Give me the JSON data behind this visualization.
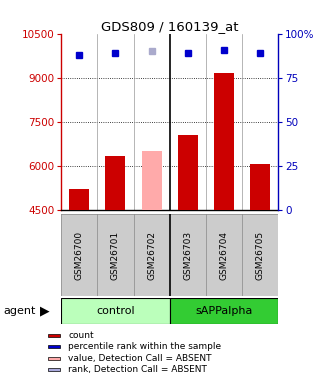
{
  "title": "GDS809 / 160139_at",
  "samples": [
    "GSM26700",
    "GSM26701",
    "GSM26702",
    "GSM26703",
    "GSM26704",
    "GSM26705"
  ],
  "group_labels": [
    "control",
    "sAPPalpha"
  ],
  "bar_values": [
    5200,
    6350,
    6500,
    7050,
    9150,
    6050
  ],
  "bar_colors": [
    "#cc0000",
    "#cc0000",
    "#ffaaaa",
    "#cc0000",
    "#cc0000",
    "#cc0000"
  ],
  "dot_pct": [
    88,
    89,
    90,
    89,
    91,
    89
  ],
  "dot_colors": [
    "#0000cc",
    "#0000cc",
    "#aaaacc",
    "#0000cc",
    "#0000cc",
    "#0000cc"
  ],
  "ylim_left": [
    4500,
    10500
  ],
  "ylim_right": [
    0,
    100
  ],
  "yticks_left": [
    4500,
    6000,
    7500,
    9000,
    10500
  ],
  "yticks_right": [
    0,
    25,
    50,
    75,
    100
  ],
  "ytick_right_labels": [
    "0",
    "25",
    "50",
    "75",
    "100%"
  ],
  "left_color": "#cc0000",
  "right_color": "#0000bb",
  "bar_bottom": 4500,
  "group_colors": [
    "#bbffbb",
    "#33cc33"
  ],
  "cell_bg": "#cccccc",
  "legend_items": [
    {
      "label": "count",
      "color": "#cc0000"
    },
    {
      "label": "percentile rank within the sample",
      "color": "#0000cc"
    },
    {
      "label": "value, Detection Call = ABSENT",
      "color": "#ffaaaa"
    },
    {
      "label": "rank, Detection Call = ABSENT",
      "color": "#aaaadd"
    }
  ]
}
